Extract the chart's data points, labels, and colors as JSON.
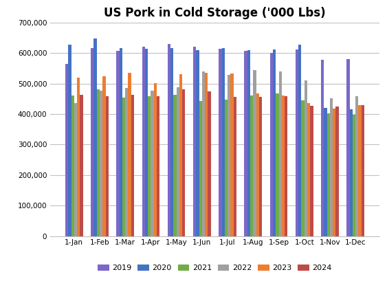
{
  "title": "US Pork in Cold Storage ('000 Lbs)",
  "categories": [
    "1-Jan",
    "1-Feb",
    "1-Mar",
    "1-Apr",
    "1-May",
    "1-Jun",
    "1-Jul",
    "1-Aug",
    "1-Sep",
    "1-Oct",
    "1-Nov",
    "1-Dec"
  ],
  "series": {
    "2019": [
      565000,
      615000,
      608000,
      620000,
      630000,
      620000,
      613000,
      607000,
      600000,
      612000,
      577000,
      580000
    ],
    "2020": [
      627000,
      648000,
      615000,
      613000,
      617000,
      610000,
      615000,
      610000,
      612000,
      628000,
      420000,
      416000
    ],
    "2021": [
      460000,
      480000,
      453000,
      458000,
      463000,
      443000,
      447000,
      460000,
      467000,
      445000,
      403000,
      398000
    ],
    "2022": [
      435000,
      477000,
      486000,
      477000,
      487000,
      540000,
      528000,
      545000,
      540000,
      511000,
      452000,
      458000
    ],
    "2023": [
      520000,
      523000,
      534000,
      502000,
      530000,
      535000,
      532000,
      468000,
      460000,
      435000,
      418000,
      430000
    ],
    "2024": [
      463000,
      458000,
      463000,
      458000,
      480000,
      475000,
      457000,
      457000,
      459000,
      428000,
      425000,
      430000
    ]
  },
  "colors": {
    "2019": "#7B68C8",
    "2020": "#4472C4",
    "2021": "#70AD47",
    "2022": "#A0A0A0",
    "2023": "#ED7D31",
    "2024": "#BE4B48"
  },
  "ylim": [
    0,
    700000
  ],
  "yticks": [
    0,
    100000,
    200000,
    300000,
    400000,
    500000,
    600000,
    700000
  ],
  "background_color": "#FFFFFF",
  "grid_color": "#C0C0C0",
  "figsize": [
    5.63,
    4.09
  ],
  "dpi": 100
}
